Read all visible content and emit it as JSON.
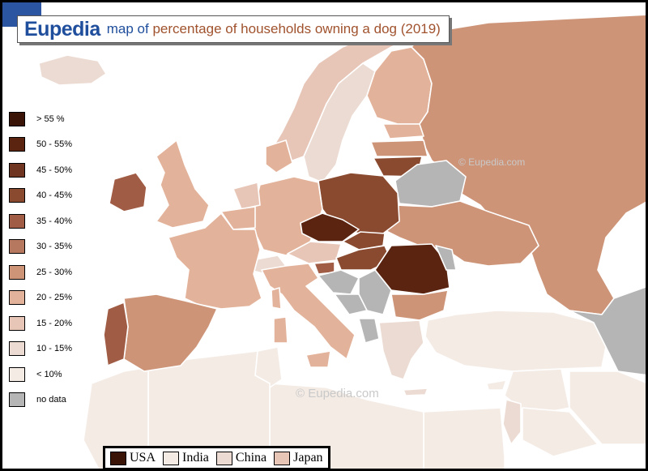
{
  "title": {
    "brand": "Eupedia",
    "lead": "map of",
    "text": "percentage of households owning a dog (2019)"
  },
  "legend": [
    {
      "label": "> 55 %",
      "color": "#3b1408"
    },
    {
      "label": "50 - 55%",
      "color": "#5a2410"
    },
    {
      "label": "45 - 50%",
      "color": "#6f3520"
    },
    {
      "label": "40 - 45%",
      "color": "#8a4a30"
    },
    {
      "label": "35 - 40%",
      "color": "#a05c44"
    },
    {
      "label": "30 - 35%",
      "color": "#b6785f"
    },
    {
      "label": "25 - 30%",
      "color": "#cd9478"
    },
    {
      "label": "20 - 25%",
      "color": "#e3b29a"
    },
    {
      "label": "15 - 20%",
      "color": "#e7c6b8"
    },
    {
      "label": "10 - 15%",
      "color": "#ecdbd2"
    },
    {
      "label": "< 10%",
      "color": "#f4ebe5"
    },
    {
      "label": "no data",
      "color": "#b5b5b5"
    }
  ],
  "comparison": [
    {
      "label": "USA",
      "color": "#3b1408"
    },
    {
      "label": "India",
      "color": "#f4ebe5"
    },
    {
      "label": "China",
      "color": "#ecdbd2"
    },
    {
      "label": "Japan",
      "color": "#e7c6b8"
    }
  ],
  "watermarks": [
    "© Eupedia.com",
    "© Eupedia.com"
  ],
  "colors": {
    "sea": "#ffffff",
    "border": "#ffffff"
  }
}
